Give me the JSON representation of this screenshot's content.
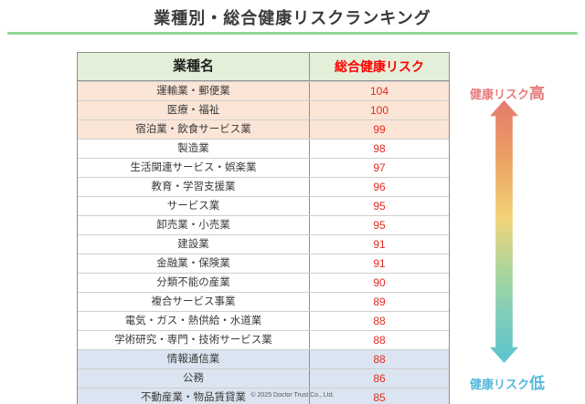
{
  "page": {
    "title": "業種別・総合健康リスクランキング",
    "footer": "© 2025 Doctor Trust Co., Ltd."
  },
  "table": {
    "headers": {
      "industry": "業種名",
      "risk": "総合健康リスク"
    },
    "rows": [
      {
        "industry": "運輸業・郵便業",
        "risk": "104",
        "tier": "high"
      },
      {
        "industry": "医療・福祉",
        "risk": "100",
        "tier": "high"
      },
      {
        "industry": "宿泊業・飲食サービス業",
        "risk": "99",
        "tier": "high"
      },
      {
        "industry": "製造業",
        "risk": "98",
        "tier": "mid"
      },
      {
        "industry": "生活関連サービス・娯楽業",
        "risk": "97",
        "tier": "mid"
      },
      {
        "industry": "教育・学習支援業",
        "risk": "96",
        "tier": "mid"
      },
      {
        "industry": "サービス業",
        "risk": "95",
        "tier": "mid"
      },
      {
        "industry": "卸売業・小売業",
        "risk": "95",
        "tier": "mid"
      },
      {
        "industry": "建設業",
        "risk": "91",
        "tier": "mid"
      },
      {
        "industry": "金融業・保険業",
        "risk": "91",
        "tier": "mid"
      },
      {
        "industry": "分類不能の産業",
        "risk": "90",
        "tier": "mid"
      },
      {
        "industry": "複合サービス事業",
        "risk": "89",
        "tier": "mid"
      },
      {
        "industry": "電気・ガス・熱供給・水道業",
        "risk": "88",
        "tier": "mid"
      },
      {
        "industry": "学術研究・専門・技術サービス業",
        "risk": "88",
        "tier": "mid"
      },
      {
        "industry": "情報通信業",
        "risk": "88",
        "tier": "low"
      },
      {
        "industry": "公務",
        "risk": "86",
        "tier": "low"
      },
      {
        "industry": "不動産業・物品賃貸業",
        "risk": "85",
        "tier": "low"
      }
    ]
  },
  "legend": {
    "high": {
      "prefix": "健康リスク",
      "suffix": "高"
    },
    "low": {
      "prefix": "健康リスク",
      "suffix": "低"
    }
  },
  "colors": {
    "title_rule_green": "#90d695",
    "header_row_bg": "#e3efd9",
    "high_tier_bg": "#fbe5d6",
    "low_tier_bg": "#dbe5f1",
    "header_risk_red": "#ff0000",
    "risk_value_red": "#e02b20",
    "legend_high_red": "#e57d7c",
    "legend_low_blue": "#54b8d9",
    "arrow_gradient_top": "#e5796f",
    "arrow_gradient_mid": "#f2d478",
    "arrow_gradient_bottom": "#5cc3cd"
  },
  "chart_data": {
    "type": "table",
    "title": "業種別・総合健康リスクランキング",
    "columns": [
      "業種名",
      "総合健康リスク"
    ],
    "categories": [
      "運輸業・郵便業",
      "医療・福祉",
      "宿泊業・飲食サービス業",
      "製造業",
      "生活関連サービス・娯楽業",
      "教育・学習支援業",
      "サービス業",
      "卸売業・小売業",
      "建設業",
      "金融業・保険業",
      "分類不能の産業",
      "複合サービス事業",
      "電気・ガス・熱供給・水道業",
      "学術研究・専門・技術サービス業",
      "情報通信業",
      "公務",
      "不動産業・物品賃貸業"
    ],
    "values": [
      104,
      100,
      99,
      98,
      97,
      96,
      95,
      95,
      91,
      91,
      90,
      89,
      88,
      88,
      88,
      86,
      85
    ],
    "annotations": [
      "健康リスク高",
      "健康リスク低"
    ],
    "legend_position": "right",
    "sort_order": "descending"
  }
}
